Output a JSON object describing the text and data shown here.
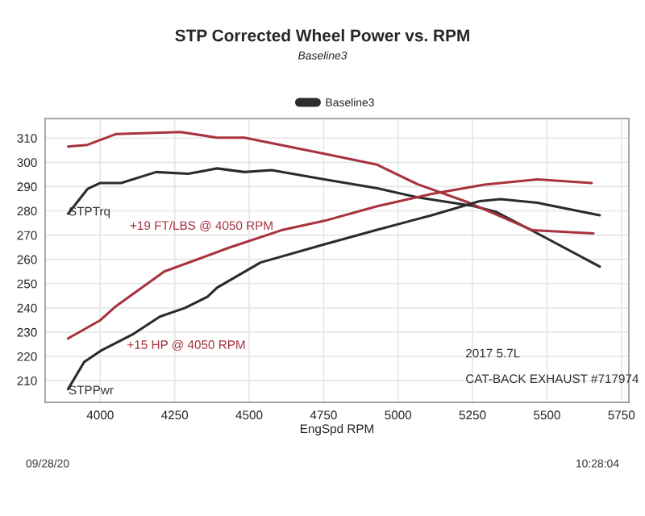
{
  "chart_data": {
    "type": "line",
    "title": "STP Corrected Wheel Power vs. RPM",
    "subtitle": "Baseline3",
    "xlabel": "EngSpd RPM",
    "xlim": [
      3815,
      5775
    ],
    "xticks": [
      4000,
      4250,
      4500,
      4750,
      5000,
      5250,
      5500,
      5750
    ],
    "ylim": [
      201,
      318
    ],
    "yticks": [
      210,
      220,
      230,
      240,
      250,
      260,
      270,
      280,
      290,
      300,
      310
    ],
    "grid": true,
    "legend": "top",
    "line_style": "solid",
    "series": [
      {
        "name": "Baseline3",
        "color": "#2b2b2b",
        "x": [
          3892,
          3957,
          4000,
          4070,
          4188,
          4296,
          4392,
          4484,
          4575,
          4753,
          4930,
          5065,
          5253,
          5328,
          5468,
          5677
        ],
        "values": [
          278.8,
          289,
          291.5,
          291.5,
          296,
          295.3,
          297.5,
          296,
          296.8,
          293,
          289.3,
          285.6,
          282,
          279.6,
          270.7,
          257
        ]
      },
      {
        "color": "#a8323e",
        "x": [
          3892,
          3957,
          4054,
          4269,
          4392,
          4484,
          4753,
          4930,
          5065,
          5237,
          5452,
          5656
        ],
        "values": [
          306.5,
          307.2,
          311.7,
          312.5,
          310.2,
          310.2,
          303.5,
          299,
          291,
          283.4,
          272,
          270.7
        ]
      },
      {
        "color": "#2b2b2b",
        "x": [
          3892,
          3946,
          4000,
          4108,
          4200,
          4285,
          4360,
          4392,
          4538,
          4753,
          4930,
          5113,
          5274,
          5344,
          5468,
          5677
        ],
        "values": [
          206.5,
          217.7,
          222.2,
          229,
          236.4,
          240,
          244.6,
          248.3,
          258.7,
          266.2,
          272.2,
          278.2,
          284,
          284.8,
          283.3,
          278.2
        ]
      },
      {
        "color": "#a8323e",
        "x": [
          3892,
          4000,
          4054,
          4215,
          4430,
          4608,
          4753,
          4930,
          5113,
          5290,
          5468,
          5650
        ],
        "values": [
          227.4,
          234.9,
          240.8,
          255,
          264.7,
          272,
          275.9,
          281.9,
          287,
          290.8,
          293,
          291.5
        ]
      }
    ],
    "annotations": [
      "STPTrq",
      "STPPwr",
      "+15 HP @ 4050 RPM",
      "+19 FT/LBS @ 4050 RPM",
      "2017 5.7L",
      "CAT-BACK EXHAUST #717974",
      "09/28/20",
      "10:28:04"
    ]
  }
}
